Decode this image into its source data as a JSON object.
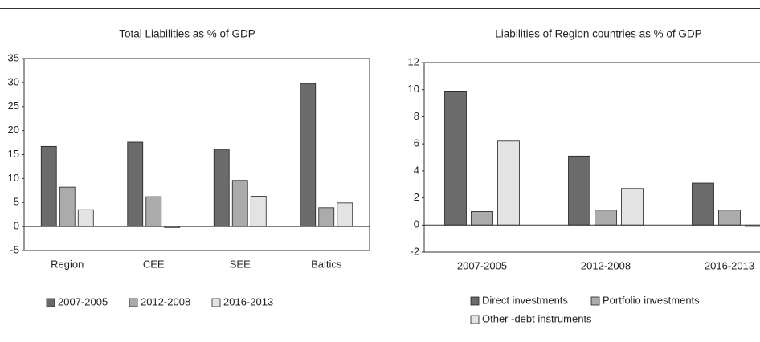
{
  "chart_data": [
    {
      "type": "bar",
      "title": "Total Liabilities as % of GDP",
      "categories": [
        "Region",
        "CEE",
        "SEE",
        "Baltics"
      ],
      "series": [
        {
          "name": "2007-2005",
          "color": "#6b6b6b",
          "values": [
            16.7,
            17.6,
            16.1,
            29.8
          ]
        },
        {
          "name": "2012-2008",
          "color": "#ababab",
          "values": [
            8.2,
            6.2,
            9.6,
            3.9
          ]
        },
        {
          "name": "2016-2013",
          "color": "#e3e3e3",
          "values": [
            3.5,
            -0.2,
            6.3,
            4.9
          ]
        }
      ],
      "ylim": [
        -5,
        35
      ],
      "yticks": [
        -5,
        0,
        5,
        10,
        15,
        20,
        25,
        30,
        35
      ]
    },
    {
      "type": "bar",
      "title": "Liabilities of Region countries as % of GDP",
      "categories": [
        "2007-2005",
        "2012-2008",
        "2016-2013"
      ],
      "series": [
        {
          "name": "Direct investments",
          "color": "#6b6b6b",
          "values": [
            9.9,
            5.1,
            3.1
          ]
        },
        {
          "name": "Portfolio investments",
          "color": "#ababab",
          "values": [
            1.0,
            1.1,
            1.1
          ]
        },
        {
          "name": "Other -debt instruments",
          "color": "#e3e3e3",
          "values": [
            6.2,
            2.7,
            -0.1
          ]
        }
      ],
      "ylim": [
        -2,
        12
      ],
      "yticks": [
        -2,
        0,
        2,
        4,
        6,
        8,
        10,
        12
      ]
    }
  ]
}
